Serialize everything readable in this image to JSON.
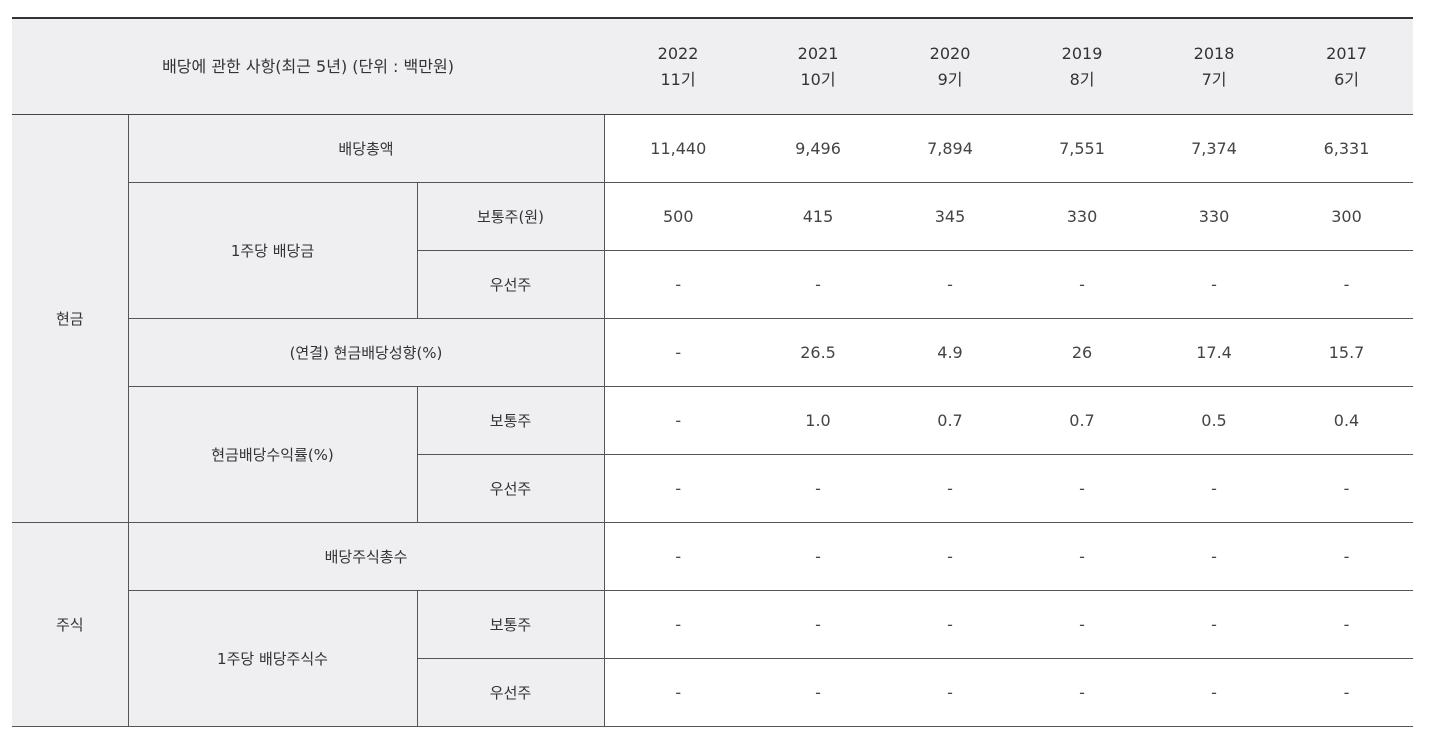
{
  "table": {
    "header": {
      "title": "배당에 관한 사항(최근 5년) (단위 : 백만원)",
      "years": [
        {
          "year": "2022",
          "term": "11기"
        },
        {
          "year": "2021",
          "term": "10기"
        },
        {
          "year": "2020",
          "term": "9기"
        },
        {
          "year": "2019",
          "term": "8기"
        },
        {
          "year": "2018",
          "term": "7기"
        },
        {
          "year": "2017",
          "term": "6기"
        }
      ]
    },
    "groups": {
      "cash": "현금",
      "stock": "주식"
    },
    "rows": {
      "total_dividend": {
        "label": "배당총액",
        "values": [
          "11,440",
          "9,496",
          "7,894",
          "7,551",
          "7,374",
          "6,331"
        ]
      },
      "dps": {
        "label": "1주당 배당금",
        "common": {
          "label": "보통주(원)",
          "values": [
            "500",
            "415",
            "345",
            "330",
            "330",
            "300"
          ]
        },
        "preferred": {
          "label": "우선주",
          "values": [
            "-",
            "-",
            "-",
            "-",
            "-",
            "-"
          ]
        }
      },
      "payout_ratio": {
        "label": "(연결) 현금배당성향(%)",
        "values": [
          "-",
          "26.5",
          "4.9",
          "26",
          "17.4",
          "15.7"
        ]
      },
      "yield": {
        "label": "현금배당수익률(%)",
        "common": {
          "label": "보통주",
          "values": [
            "-",
            "1.0",
            "0.7",
            "0.7",
            "0.5",
            "0.4"
          ]
        },
        "preferred": {
          "label": "우선주",
          "values": [
            "-",
            "-",
            "-",
            "-",
            "-",
            "-"
          ]
        }
      },
      "stock_total": {
        "label": "배당주식총수",
        "values": [
          "-",
          "-",
          "-",
          "-",
          "-",
          "-"
        ]
      },
      "stock_per_share": {
        "label": "1주당 배당주식수",
        "common": {
          "label": "보통주",
          "values": [
            "-",
            "-",
            "-",
            "-",
            "-",
            "-"
          ]
        },
        "preferred": {
          "label": "우선주",
          "values": [
            "-",
            "-",
            "-",
            "-",
            "-",
            "-"
          ]
        }
      }
    }
  }
}
